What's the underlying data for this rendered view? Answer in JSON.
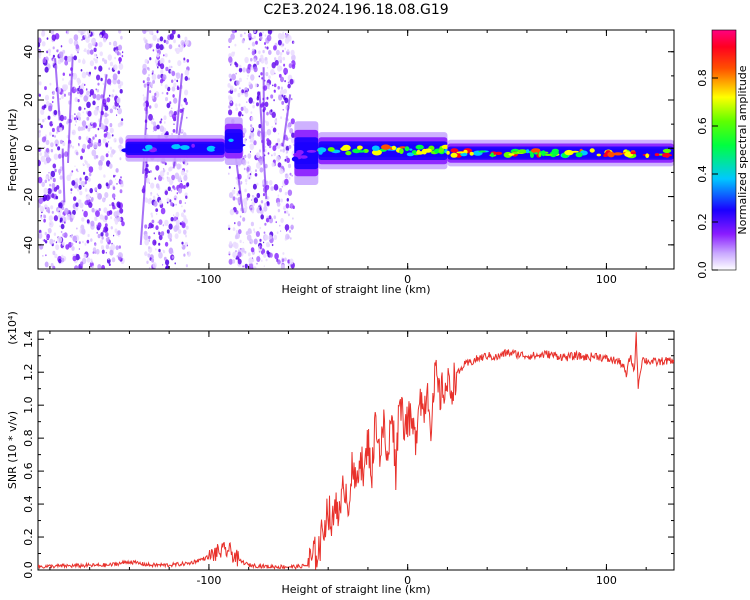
{
  "title": "C2E3.2024.196.18.08.G19",
  "chart_data": [
    {
      "type": "heatmap",
      "xlabel": "Height of straight line (km)",
      "ylabel": "Frequency (Hz)",
      "xlim": [
        -186,
        134
      ],
      "ylim": [
        -50,
        49
      ],
      "xticks": [
        -100,
        0,
        100
      ],
      "yticks": [
        -40,
        -20,
        0,
        20,
        40
      ],
      "tick_labels_x": [
        "-100",
        "0",
        "100"
      ],
      "tick_labels_y": [
        "-40",
        "-20",
        "0",
        "20",
        "40"
      ],
      "colorbar": {
        "label": "Normalized spectral amplitude",
        "range": [
          0,
          1
        ],
        "ticks": [
          "0.0",
          "0.2",
          "0.4",
          "0.6",
          "0.8"
        ],
        "tick_values": [
          0,
          0.2,
          0.4,
          0.6,
          0.8
        ],
        "colors": [
          "#ffffff",
          "#e8d8ff",
          "#9b30ff",
          "#4b00e0",
          "#0000ff",
          "#00c8ff",
          "#00ff80",
          "#40ff00",
          "#ffff00",
          "#ff8000",
          "#ff0000",
          "#ff0080"
        ]
      },
      "noise_regions_km": [
        [
          -186,
          -143
        ],
        [
          -133,
          -110
        ],
        [
          -90,
          -57
        ]
      ],
      "band_segments": [
        {
          "x0": -142,
          "x1": -92,
          "center_hz": 0,
          "halfwidth_hz": 2.5,
          "peak": 0.42
        },
        {
          "x0": -92,
          "x1": -83,
          "center_hz": 3,
          "halfwidth_hz": 4.5,
          "peak": 0.38
        },
        {
          "x0": -57,
          "x1": -45,
          "center_hz": -2,
          "halfwidth_hz": 6,
          "peak": 0.3
        },
        {
          "x0": -45,
          "x1": 20,
          "center_hz": -1,
          "halfwidth_hz": 3.5,
          "peak": 0.78
        },
        {
          "x0": 20,
          "x1": 134,
          "center_hz": -2,
          "halfwidth_hz": 2.5,
          "peak": 0.88
        }
      ]
    },
    {
      "type": "line",
      "xlabel": "Height of straight line (km)",
      "ylabel": "SNR (10 * v/v)",
      "y_scale_label": "(x10⁴)",
      "xlim": [
        -186,
        134
      ],
      "ylim": [
        0,
        1.45
      ],
      "xticks": [
        -100,
        0,
        100
      ],
      "yticks": [
        0,
        0.2,
        0.4,
        0.6,
        0.8,
        1.0,
        1.2,
        1.4
      ],
      "tick_labels_x": [
        "-100",
        "0",
        "100"
      ],
      "tick_labels_y": [
        "0.0",
        "0.2",
        "0.4",
        "0.6",
        "0.8",
        "1.0",
        "1.2",
        "1.4"
      ],
      "color": "#e8312b",
      "series": [
        {
          "x": [
            -186,
            -170,
            -150,
            -140,
            -130,
            -120,
            -110,
            -100,
            -95,
            -90,
            -85,
            -80,
            -70,
            -60,
            -55,
            -50,
            -47,
            -44,
            -42,
            -40,
            -38,
            -36,
            -34,
            -32,
            -30,
            -28,
            -26,
            -24,
            -22,
            -20,
            -18,
            -16,
            -14,
            -12,
            -10,
            -8,
            -6,
            -4,
            -2,
            0,
            2,
            4,
            6,
            8,
            10,
            12,
            14,
            16,
            18,
            20,
            22,
            24,
            26,
            28,
            30,
            35,
            40,
            45,
            50,
            55,
            60,
            65,
            70,
            75,
            80,
            85,
            90,
            95,
            100,
            105,
            108,
            110,
            112,
            114,
            115,
            116,
            118,
            120,
            125,
            130,
            134
          ],
          "values": [
            0.02,
            0.025,
            0.03,
            0.05,
            0.03,
            0.03,
            0.04,
            0.08,
            0.11,
            0.12,
            0.06,
            0.03,
            0.02,
            0.02,
            0.02,
            0.03,
            0.08,
            0.15,
            0.28,
            0.38,
            0.25,
            0.45,
            0.3,
            0.55,
            0.4,
            0.6,
            0.5,
            0.72,
            0.55,
            0.8,
            0.58,
            0.95,
            0.7,
            0.88,
            0.62,
            1.02,
            0.6,
            1.08,
            0.9,
            0.92,
            0.88,
            0.78,
            1.1,
            0.95,
            1.12,
            0.85,
            1.2,
            1.05,
            1.1,
            1.12,
            1.1,
            1.18,
            1.2,
            1.24,
            1.25,
            1.28,
            1.3,
            1.29,
            1.32,
            1.31,
            1.3,
            1.3,
            1.31,
            1.3,
            1.29,
            1.3,
            1.29,
            1.3,
            1.28,
            1.27,
            1.25,
            1.18,
            1.3,
            1.21,
            1.42,
            1.12,
            1.28,
            1.27,
            1.26,
            1.27,
            1.26
          ]
        }
      ]
    }
  ]
}
